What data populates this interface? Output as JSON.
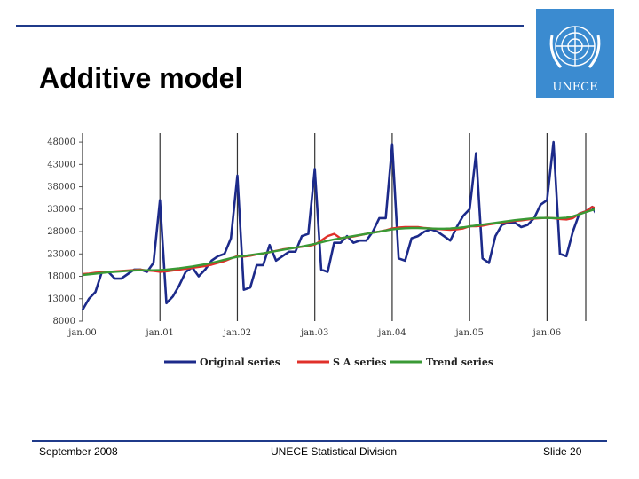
{
  "slide": {
    "title": "Additive model",
    "footer_left": "September 2008",
    "footer_center": "UNECE Statistical Division",
    "footer_right": "Slide 20",
    "logo_text": "UNECE"
  },
  "colors": {
    "rule": "#1f3a8a",
    "logo_bg": "#3b8bd0",
    "original": "#1c2a8a",
    "sa": "#e0302a",
    "trend": "#3a9a35"
  },
  "chart_data": {
    "type": "line",
    "title": "",
    "xlabel": "",
    "ylabel": "",
    "ylim": [
      8000,
      50000
    ],
    "yticks": [
      8000,
      13000,
      18000,
      23000,
      28000,
      33000,
      38000,
      43000,
      48000
    ],
    "ytick_labels": [
      "8000",
      "13000",
      "18000",
      "23000",
      "28000",
      "33000",
      "38000",
      "43000",
      "48000"
    ],
    "xticks": [
      0,
      12,
      24,
      36,
      48,
      60,
      72
    ],
    "xtick_labels": [
      "jan.00",
      "jan.01",
      "jan.02",
      "jan.03",
      "jan.04",
      "jan.05",
      "jan.06"
    ],
    "xlim": [
      0,
      78
    ],
    "legend_position": "bottom",
    "series": [
      {
        "name": "Original series",
        "values": [
          10500,
          13000,
          14500,
          19000,
          19000,
          17500,
          17500,
          18500,
          19500,
          19500,
          19000,
          21000,
          35000,
          12000,
          13500,
          16000,
          19000,
          20000,
          18000,
          19500,
          21500,
          22500,
          23000,
          26500,
          40500,
          15000,
          15500,
          20500,
          20500,
          25000,
          21500,
          22500,
          23500,
          23500,
          27000,
          27500,
          42000,
          19500,
          19000,
          25500,
          25500,
          27000,
          25500,
          26000,
          26000,
          28000,
          31000,
          31000,
          47500,
          22000,
          21500,
          26500,
          27000,
          28000,
          28500,
          28000,
          27000,
          26000,
          29000,
          31500,
          33000,
          45500,
          22000,
          21000,
          27000,
          29500,
          30000,
          30000,
          29000,
          29500,
          31000,
          34000,
          35000,
          48000,
          23000,
          22500,
          28000,
          32000,
          32500,
          33500,
          31000
        ]
      },
      {
        "name": "S A series",
        "values": [
          18500,
          18600,
          18800,
          18900,
          19000,
          19100,
          19200,
          19300,
          19400,
          19500,
          19300,
          19200,
          19000,
          19100,
          19300,
          19500,
          19700,
          19900,
          20100,
          20300,
          20600,
          21000,
          21400,
          22000,
          22500,
          22400,
          22600,
          22900,
          23100,
          23400,
          23700,
          24000,
          24200,
          24400,
          24600,
          24800,
          25100,
          26000,
          27000,
          27500,
          26500,
          26700,
          26900,
          27200,
          27500,
          27800,
          28000,
          28300,
          28700,
          28900,
          29000,
          29000,
          29000,
          28800,
          28700,
          28600,
          28500,
          28400,
          28500,
          28700,
          29200,
          29200,
          29300,
          29600,
          29800,
          30000,
          30200,
          30400,
          30500,
          30700,
          30900,
          31000,
          31100,
          31000,
          30800,
          30700,
          31000,
          32000,
          32500,
          33500,
          33000
        ]
      },
      {
        "name": "Trend series",
        "values": [
          18300,
          18450,
          18600,
          18750,
          18900,
          19000,
          19100,
          19200,
          19300,
          19350,
          19350,
          19350,
          19400,
          19500,
          19650,
          19800,
          20000,
          20200,
          20450,
          20700,
          21000,
          21350,
          21700,
          22050,
          22350,
          22550,
          22750,
          22950,
          23150,
          23400,
          23650,
          23900,
          24150,
          24400,
          24650,
          24950,
          25250,
          25600,
          25950,
          26250,
          26500,
          26750,
          27000,
          27250,
          27500,
          27750,
          28000,
          28250,
          28500,
          28650,
          28750,
          28800,
          28800,
          28750,
          28700,
          28650,
          28650,
          28700,
          28800,
          28950,
          29150,
          29350,
          29550,
          29750,
          29950,
          30150,
          30350,
          30550,
          30700,
          30850,
          31000,
          31050,
          31050,
          31000,
          31000,
          31100,
          31400,
          31850,
          32350,
          32800,
          33100
        ]
      }
    ]
  }
}
